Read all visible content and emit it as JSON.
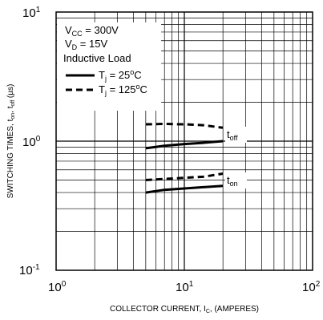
{
  "chart_data": {
    "type": "line",
    "xlabel": "COLLECTOR CURRENT, I",
    "xlabel_sub": "C",
    "xlabel_tail": ", (AMPERES)",
    "ylabel_parts": [
      "SWITCHING TIMES, t",
      "on",
      ", t",
      "off",
      " (µs)"
    ],
    "x_scale": "log",
    "y_scale": "log",
    "xlim": [
      1,
      100
    ],
    "ylim": [
      0.1,
      10
    ],
    "grid": true,
    "x_ticks": [
      {
        "value": 1,
        "base": "10",
        "exp": "0"
      },
      {
        "value": 10,
        "base": "10",
        "exp": "1"
      },
      {
        "value": 100,
        "base": "10",
        "exp": "2"
      }
    ],
    "y_ticks": [
      {
        "value": 0.1,
        "base": "10",
        "exp": "-1"
      },
      {
        "value": 1,
        "base": "10",
        "exp": "0"
      },
      {
        "value": 10,
        "base": "10",
        "exp": "1"
      }
    ],
    "conditions": [
      {
        "main": "V",
        "sub": "CC",
        "tail": " = 300V"
      },
      {
        "main": "V",
        "sub": "D",
        "tail": " = 15V"
      },
      {
        "main": "Inductive Load",
        "sub": "",
        "tail": ""
      }
    ],
    "legend": [
      {
        "style": "solid",
        "main": "T",
        "sub": "j",
        "tail": " = 25",
        "sup": "o",
        "end": "C"
      },
      {
        "style": "dashed",
        "main": "T",
        "sub": "j",
        "tail": " = 125",
        "sup": "o",
        "end": "C"
      }
    ],
    "series": [
      {
        "label": "toff",
        "style": "solid",
        "x": [
          5,
          7,
          10,
          14,
          20
        ],
        "y": [
          0.88,
          0.92,
          0.95,
          0.97,
          1.0
        ]
      },
      {
        "label": "toff",
        "style": "dashed",
        "x": [
          5,
          7,
          10,
          14,
          20
        ],
        "y": [
          1.35,
          1.36,
          1.35,
          1.33,
          1.27
        ]
      },
      {
        "label": "ton",
        "style": "solid",
        "x": [
          5,
          7,
          10,
          14,
          20
        ],
        "y": [
          0.4,
          0.42,
          0.43,
          0.44,
          0.45
        ]
      },
      {
        "label": "ton",
        "style": "dashed",
        "x": [
          5,
          7,
          10,
          14,
          20
        ],
        "y": [
          0.5,
          0.51,
          0.52,
          0.53,
          0.56
        ]
      }
    ],
    "curve_labels": [
      {
        "main": "t",
        "sub": "off"
      },
      {
        "main": "t",
        "sub": "on"
      }
    ]
  }
}
